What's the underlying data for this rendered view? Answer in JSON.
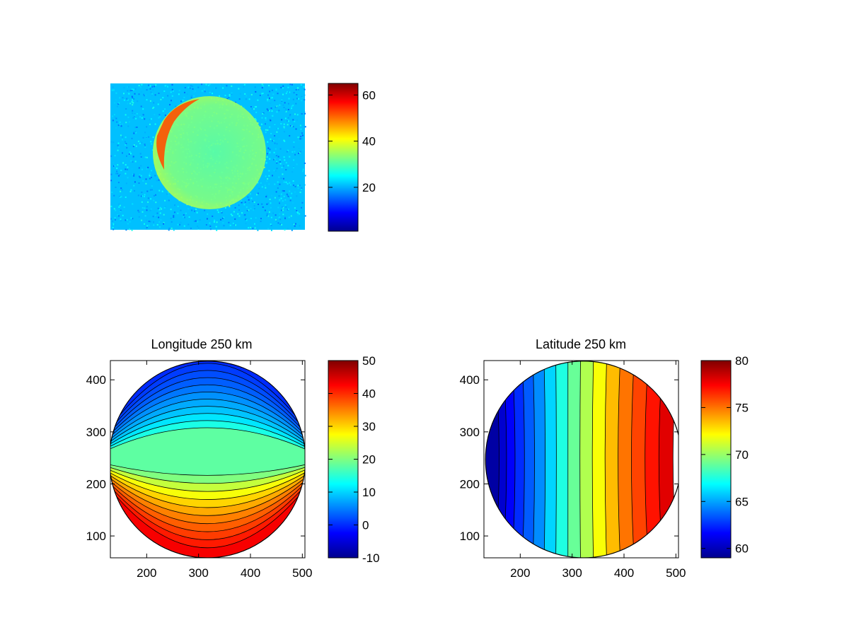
{
  "figure": {
    "background": "#ffffff"
  },
  "colormap": {
    "name": "jet",
    "stops": [
      "#00008f",
      "#0000ff",
      "#0080ff",
      "#00ffff",
      "#80ff80",
      "#ffff00",
      "#ff8000",
      "#ff0000",
      "#800000"
    ]
  },
  "chart_data": [
    {
      "id": "panel-image",
      "type": "heatmap",
      "title": "",
      "description_values": {
        "background_level": 21,
        "disk_level": 31,
        "limb_high_level": 52
      },
      "colorbar": {
        "clim": [
          1,
          65
        ],
        "ticks": [
          20,
          40,
          60
        ],
        "tick_labels": [
          "20",
          "40",
          "60"
        ]
      },
      "axes_visible": false
    },
    {
      "id": "panel-longitude",
      "type": "heatmap",
      "title": "Longitude 250 km",
      "xlim": [
        130,
        505
      ],
      "ylim": [
        58,
        437
      ],
      "xticks": [
        200,
        300,
        400,
        500
      ],
      "xtick_labels": [
        "200",
        "300",
        "400",
        "500"
      ],
      "yticks": [
        100,
        200,
        300,
        400
      ],
      "ytick_labels": [
        "100",
        "200",
        "300",
        "400"
      ],
      "disk_center": [
        317,
        247
      ],
      "disk_radius": 189,
      "colorbar": {
        "clim": [
          -10,
          50
        ],
        "ticks": [
          -10,
          0,
          10,
          20,
          30,
          40,
          50
        ],
        "tick_labels": [
          "-10",
          "0",
          "10",
          "20",
          "30",
          "40",
          "50"
        ]
      },
      "contour_levels_top": [
        14,
        11,
        9,
        7.5,
        6,
        4.5,
        3,
        2,
        1,
        0
      ],
      "contour_levels_bottom": [
        20,
        24,
        27,
        30,
        32.5,
        35,
        37,
        39,
        41,
        43
      ],
      "fill_center_value": 18
    },
    {
      "id": "panel-latitude",
      "type": "heatmap",
      "title": "Latitude 250 km",
      "xlim": [
        130,
        505
      ],
      "ylim": [
        58,
        437
      ],
      "xticks": [
        200,
        300,
        400,
        500
      ],
      "xtick_labels": [
        "200",
        "300",
        "400",
        "500"
      ],
      "yticks": [
        100,
        200,
        300,
        400
      ],
      "ytick_labels": [
        "100",
        "200",
        "300",
        "400"
      ],
      "disk_center": [
        322,
        247
      ],
      "disk_radius": 189,
      "colorbar": {
        "clim": [
          59,
          80
        ],
        "ticks": [
          60,
          65,
          70,
          75,
          80
        ],
        "tick_labels": [
          "60",
          "65",
          "70",
          "75",
          "80"
        ]
      },
      "contour_bands_left_to_right": [
        59.5,
        60.5,
        61.5,
        62.5,
        63.5,
        64.5,
        66,
        67.5,
        69,
        70.5,
        72,
        73.5,
        75,
        76,
        77,
        78
      ]
    }
  ]
}
